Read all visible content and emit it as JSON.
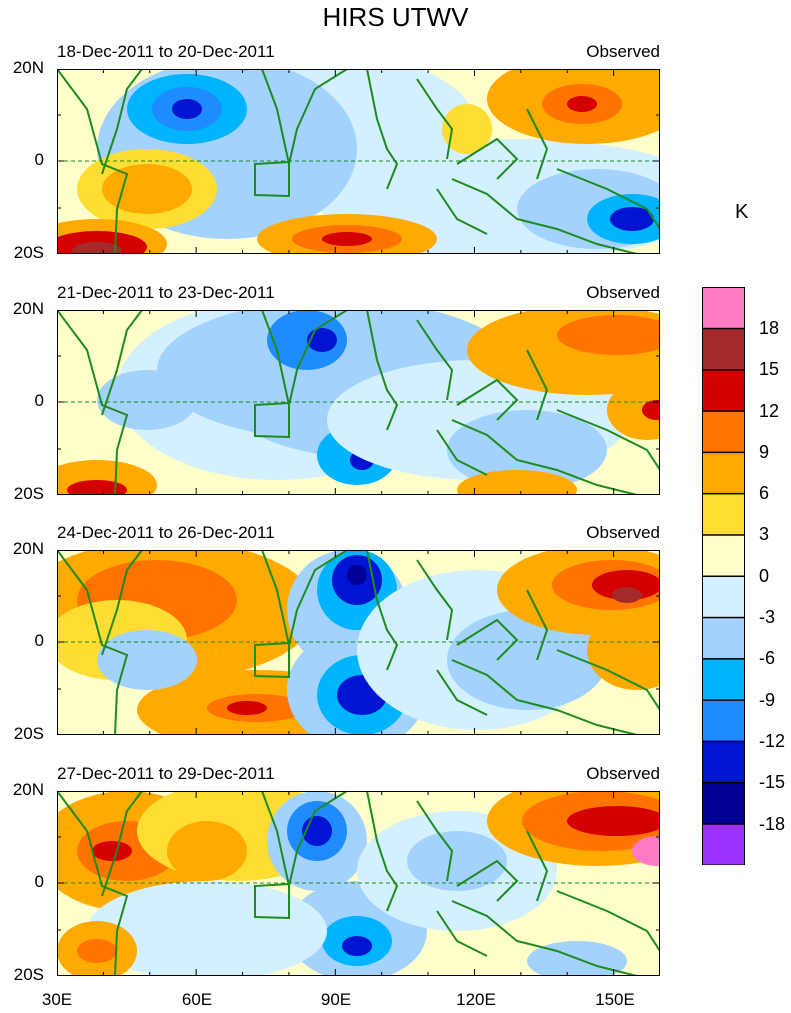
{
  "title": "HIRS UTWV",
  "unit": "K",
  "panels": [
    {
      "date": "18-Dec-2011 to 20-Dec-2011",
      "label": "Observed"
    },
    {
      "date": "21-Dec-2011 to 23-Dec-2011",
      "label": "Observed"
    },
    {
      "date": "24-Dec-2011 to 26-Dec-2011",
      "label": "Observed"
    },
    {
      "date": "27-Dec-2011 to 29-Dec-2011",
      "label": "Observed"
    }
  ],
  "lat_labels": [
    "20N",
    "0",
    "20S"
  ],
  "lon_labels": [
    "30E",
    "60E",
    "90E",
    "120E",
    "150E"
  ],
  "colorbar": {
    "labels": [
      "18",
      "15",
      "12",
      "9",
      "6",
      "3",
      "0",
      "-3",
      "-6",
      "-9",
      "-12",
      "-15",
      "-18"
    ],
    "colors": [
      "#ff7ac2",
      "#a52a2a",
      "#d40000",
      "#ff7400",
      "#ffaa00",
      "#ffdd33",
      "#ffffcc",
      "#d2f0ff",
      "#a3d2ff",
      "#00b4ff",
      "#1e8cff",
      "#0014d2",
      "#000096",
      "#9b30ff"
    ]
  },
  "colors": {
    "coast": "#1f8a1f",
    "equator": "#1f8a1f",
    "box": "#1f8a1f"
  }
}
